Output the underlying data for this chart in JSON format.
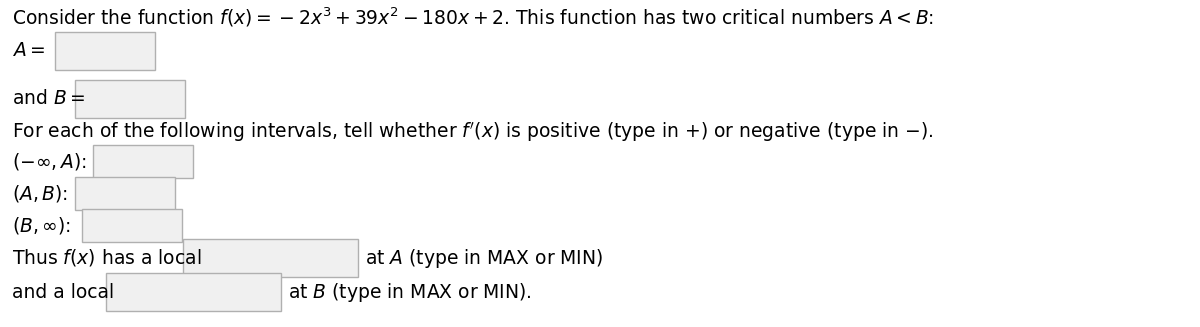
{
  "bg_color": "#ffffff",
  "text_color": "#000000",
  "box_edgecolor": "#b0b0b0",
  "box_facecolor": "#f0f0f0",
  "title_line": "Consider the function $f(x) = -2x^3 + 39x^2 - 180x + 2$. This function has two critical numbers $A < B$:",
  "line_A": "$A = $",
  "line_B": "and $B = $",
  "line_for": "For each of the following intervals, tell whether $f'(x)$ is positive (type in $+$) or negative (type in $-$).",
  "line_inf_A": "$(-\\infty, A)$:",
  "line_AB": "$(A, B)$:",
  "line_Binf": "$(B, \\infty)$:",
  "line_thus_a": "Thus $f(x)$ has a local",
  "line_thus_b": "at $A$ (type in MAX or MIN)",
  "line_and_a": "and a local",
  "line_and_b": "at $B$ (type in MAX or MIN).",
  "font_size": 13.5,
  "fig_width": 12.0,
  "fig_height": 3.27,
  "dpi": 100
}
